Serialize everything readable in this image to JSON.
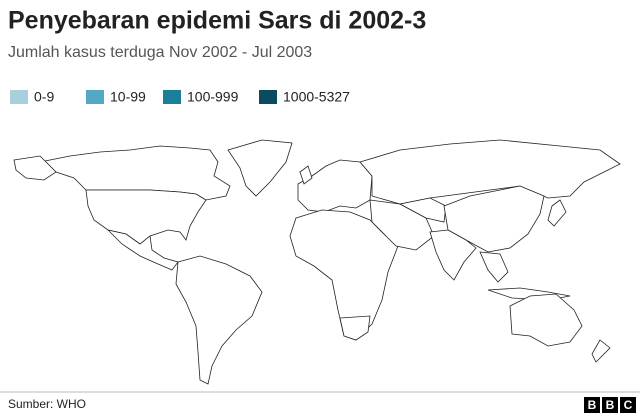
{
  "header": {
    "title": "Penyebaran epidemi Sars di 2002-3",
    "subtitle": "Jumlah kasus terduga Nov 2002 - Jul 2003"
  },
  "legend": [
    {
      "label": "0-9",
      "color": "#a8cfdc"
    },
    {
      "label": "10-99",
      "color": "#54a8c6"
    },
    {
      "label": "100-999",
      "color": "#1b7e9b"
    },
    {
      "label": "1000-5327",
      "color": "#0c4b5f"
    }
  ],
  "footer": {
    "source": "Sumber: WHO",
    "logo": [
      "B",
      "B",
      "C"
    ]
  }
}
